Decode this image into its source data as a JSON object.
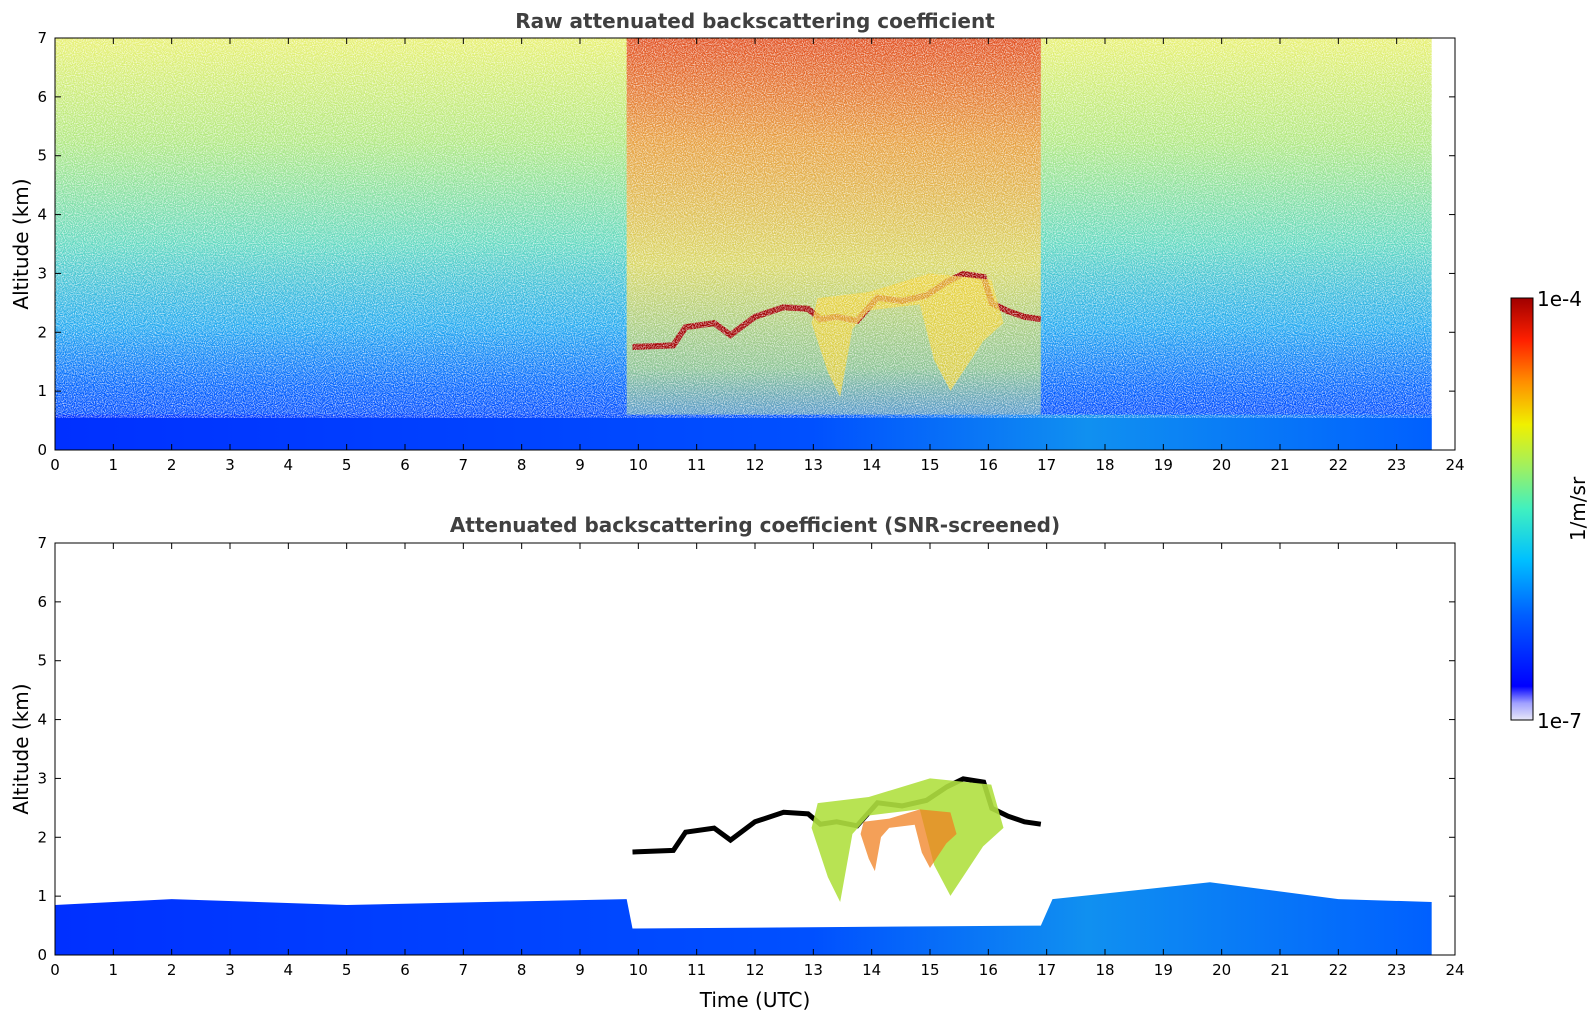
{
  "chart_data": [
    {
      "type": "heatmap",
      "title": "Raw attenuated backscattering coefficient",
      "xlabel": "",
      "ylabel": "Altitude (km)",
      "xlim": [
        0,
        24
      ],
      "ylim": [
        0,
        7
      ],
      "x_ticks": [
        "0",
        "1",
        "2",
        "3",
        "4",
        "5",
        "6",
        "7",
        "8",
        "9",
        "10",
        "11",
        "12",
        "13",
        "14",
        "15",
        "16",
        "17",
        "18",
        "19",
        "20",
        "21",
        "22",
        "23",
        "24"
      ],
      "y_ticks": [
        "0",
        "1",
        "2",
        "3",
        "4",
        "5",
        "6",
        "7"
      ],
      "data_end_time": 23.6,
      "features": [
        {
          "name": "boundary-layer",
          "time": [
            0,
            23.6
          ],
          "altitude": [
            0,
            0.6
          ]
        },
        {
          "name": "cloud-layer",
          "time": [
            9.9,
            16.9
          ],
          "altitude_base": [
            1.75,
            3.1
          ]
        },
        {
          "name": "virga-fallstreaks",
          "time": [
            12.9,
            16.4
          ],
          "altitude": [
            0.9,
            3.0
          ]
        },
        {
          "name": "high-noise-period",
          "time": [
            9.8,
            16.9
          ],
          "altitude": [
            0,
            7
          ]
        }
      ]
    },
    {
      "type": "heatmap",
      "title": "Attenuated backscattering coefficient (SNR-screened)",
      "xlabel": "Time (UTC)",
      "ylabel": "Altitude (km)",
      "xlim": [
        0,
        24
      ],
      "ylim": [
        0,
        7
      ],
      "x_ticks": [
        "0",
        "1",
        "2",
        "3",
        "4",
        "5",
        "6",
        "7",
        "8",
        "9",
        "10",
        "11",
        "12",
        "13",
        "14",
        "15",
        "16",
        "17",
        "18",
        "19",
        "20",
        "21",
        "22",
        "23",
        "24"
      ],
      "y_ticks": [
        "0",
        "1",
        "2",
        "3",
        "4",
        "5",
        "6",
        "7"
      ],
      "data_end_time": 23.6,
      "features": [
        {
          "name": "boundary-layer",
          "time": [
            0,
            23.6
          ],
          "altitude": [
            0,
            1.3
          ]
        },
        {
          "name": "cloud-layer",
          "time": [
            9.9,
            16.9
          ],
          "altitude_base": [
            1.75,
            3.1
          ]
        },
        {
          "name": "virga-fallstreaks",
          "time": [
            12.9,
            16.4
          ],
          "altitude": [
            0.9,
            3.0
          ]
        }
      ]
    }
  ],
  "colorbar": {
    "label": "1/m/sr",
    "min_label": "1e-7",
    "max_label": "1e-4",
    "scale": "log",
    "colormap": "jet",
    "colors": [
      "#e8e8f8",
      "#a0a0ff",
      "#0000ff",
      "#0060ff",
      "#00c0ff",
      "#40f0c0",
      "#a0f060",
      "#f0f000",
      "#ff9000",
      "#ff2000",
      "#a00000"
    ]
  }
}
